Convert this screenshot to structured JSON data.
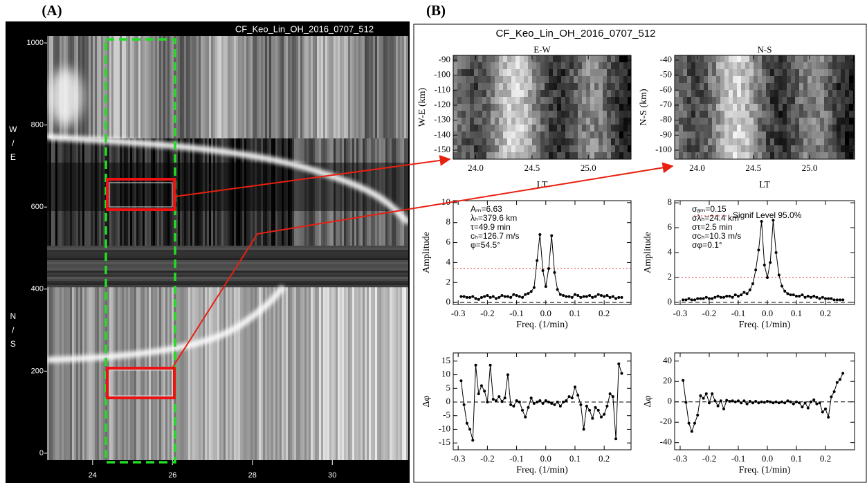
{
  "figure": {
    "panel_a": "(A)",
    "panel_b": "(B)",
    "title_b": "CF_Keo_Lin_OH_2016_0707_512"
  },
  "chart_data": [
    {
      "type": "keogram",
      "title": "CF_Keo_Lin_OH_2016_0707_512",
      "ylabel_top": "W/E",
      "ylabel_bottom": "N/S",
      "xlim": [
        22.86,
        31.9
      ],
      "xticks": [
        24,
        26,
        28,
        30
      ],
      "ylim": [
        -17,
        1017
      ],
      "yticks": [
        0,
        200,
        400,
        600,
        800,
        1000
      ]
    },
    {
      "type": "image",
      "title": "E-W",
      "xlabel": "LT",
      "ylabel": "W-E (km)",
      "xlim": [
        23.8,
        25.38
      ],
      "xticks": [
        {
          "value": 24,
          "label": "24.0"
        },
        24.5,
        {
          "value": 25,
          "label": "25.0"
        }
      ],
      "ylim": [
        -156,
        -86.8
      ],
      "yticks": [
        -90,
        -100,
        -110,
        -120,
        -130,
        -140,
        -150
      ]
    },
    {
      "type": "image",
      "title": "N-S",
      "xlabel": "LT",
      "ylabel": "N-S (km)",
      "xlim": [
        23.8,
        25.4
      ],
      "xticks": [
        {
          "value": 24,
          "label": "24.0"
        },
        24.5,
        {
          "value": 25,
          "label": "25.0"
        }
      ],
      "ylim": [
        -106,
        -36.8
      ],
      "yticks": [
        -40,
        -50,
        -60,
        -70,
        -80,
        -90,
        -100
      ]
    },
    {
      "type": "line",
      "xlabel": "Freq. (1/min)",
      "ylabel": "Amplitude",
      "color": "#000000",
      "sig_level": 3.4,
      "sig_color": "#e03030",
      "annotations": [
        "Aₘ=6.63",
        "λₕ=379.6 km",
        "τ=49.9 min",
        "cₕ=126.7 m/s",
        "φ=54.5°"
      ],
      "xlim": [
        -0.317,
        0.292
      ],
      "xticks": [
        -0.3,
        -0.2,
        -0.1,
        {
          "value": 0,
          "label": "0.0"
        },
        0.1,
        0.2
      ],
      "ylim": [
        -0.2,
        10.2
      ],
      "yticks": [
        0,
        2,
        4,
        6,
        8,
        10
      ],
      "x": [
        -0.29,
        -0.28,
        -0.27,
        -0.26,
        -0.25,
        -0.24,
        -0.23,
        -0.22,
        -0.21,
        -0.2,
        -0.19,
        -0.18,
        -0.17,
        -0.16,
        -0.15,
        -0.14,
        -0.13,
        -0.12,
        -0.11,
        -0.1,
        -0.09,
        -0.08,
        -0.07,
        -0.06,
        -0.05,
        -0.04,
        -0.03,
        -0.02,
        -0.01,
        0,
        0.01,
        0.02,
        0.03,
        0.04,
        0.05,
        0.06,
        0.07,
        0.08,
        0.09,
        0.1,
        0.11,
        0.12,
        0.13,
        0.14,
        0.15,
        0.16,
        0.17,
        0.18,
        0.19,
        0.2,
        0.21,
        0.22,
        0.23,
        0.24,
        0.25,
        0.26
      ],
      "values": [
        0.6,
        0.6,
        0.5,
        0.5,
        0.6,
        0.4,
        0.3,
        0.5,
        0.6,
        0.7,
        0.5,
        0.6,
        0.4,
        0.5,
        0.7,
        0.6,
        0.6,
        0.5,
        0.8,
        0.7,
        0.6,
        0.5,
        0.8,
        0.9,
        1.1,
        1.5,
        4.2,
        6.8,
        3.2,
        1.6,
        3.4,
        6.7,
        3.0,
        1.3,
        0.8,
        0.7,
        0.6,
        0.6,
        0.5,
        0.8,
        0.7,
        0.5,
        0.6,
        0.6,
        0.7,
        0.5,
        0.6,
        0.8,
        0.7,
        0.6,
        0.7,
        0.5,
        0.6,
        0.4,
        0.5,
        0.5
      ]
    },
    {
      "type": "line",
      "xlabel": "Freq. (1/min)",
      "ylabel": "Amplitude",
      "color": "#000000",
      "sig_level": 2,
      "sig_color": "#e03030",
      "legend": "Signif Level 95.0%",
      "annotations": [
        "σₐₘ=0.15",
        "σλₕ=24.4 km",
        "στ=2.5 min",
        "σcₕ=10.3 m/s",
        "σφ=0.1°"
      ],
      "xlim": [
        -0.319,
        0.3
      ],
      "xticks": [
        -0.3,
        -0.2,
        -0.1,
        {
          "value": 0,
          "label": "0.0"
        },
        0.1,
        0.2
      ],
      "ylim": [
        -0.17,
        8.17
      ],
      "yticks": [
        0,
        2,
        4,
        6,
        8
      ],
      "x": [
        -0.29,
        -0.28,
        -0.27,
        -0.26,
        -0.25,
        -0.24,
        -0.23,
        -0.22,
        -0.21,
        -0.2,
        -0.19,
        -0.18,
        -0.17,
        -0.16,
        -0.15,
        -0.14,
        -0.13,
        -0.12,
        -0.11,
        -0.1,
        -0.09,
        -0.08,
        -0.07,
        -0.06,
        -0.05,
        -0.04,
        -0.03,
        -0.02,
        -0.01,
        0,
        0.01,
        0.02,
        0.03,
        0.04,
        0.05,
        0.06,
        0.07,
        0.08,
        0.09,
        0.1,
        0.11,
        0.12,
        0.13,
        0.14,
        0.15,
        0.16,
        0.17,
        0.18,
        0.19,
        0.2,
        0.21,
        0.22,
        0.23,
        0.24,
        0.25,
        0.26
      ],
      "values": [
        0.2,
        0.2,
        0.3,
        0.2,
        0.2,
        0.3,
        0.3,
        0.3,
        0.4,
        0.3,
        0.3,
        0.4,
        0.5,
        0.4,
        0.4,
        0.5,
        0.5,
        0.4,
        0.6,
        0.5,
        0.6,
        0.8,
        0.7,
        1.0,
        1.5,
        2.6,
        4.2,
        6.5,
        3.0,
        2.0,
        3.2,
        6.6,
        4.0,
        2.2,
        1.3,
        0.9,
        0.7,
        0.6,
        0.6,
        0.5,
        0.5,
        0.6,
        0.4,
        0.5,
        0.4,
        0.5,
        0.4,
        0.3,
        0.4,
        0.3,
        0.3,
        0.3,
        0.2,
        0.2,
        0.2,
        0.2
      ]
    },
    {
      "type": "line",
      "xlabel": "Freq. (1/min)",
      "ylabel": "Δφ",
      "color": "#000000",
      "xlim": [
        -0.317,
        0.292
      ],
      "xticks": [
        -0.3,
        -0.2,
        -0.1,
        {
          "value": 0,
          "label": "0.0"
        },
        0.1,
        0.2
      ],
      "ylim": [
        -17.5,
        18
      ],
      "yticks": [
        -15,
        -10,
        -5,
        0,
        5,
        10,
        15
      ],
      "x": [
        -0.29,
        -0.28,
        -0.27,
        -0.26,
        -0.25,
        -0.24,
        -0.23,
        -0.22,
        -0.21,
        -0.2,
        -0.19,
        -0.18,
        -0.17,
        -0.16,
        -0.15,
        -0.14,
        -0.13,
        -0.12,
        -0.11,
        -0.1,
        -0.09,
        -0.08,
        -0.07,
        -0.06,
        -0.05,
        -0.04,
        -0.03,
        -0.02,
        -0.01,
        0,
        0.01,
        0.02,
        0.03,
        0.04,
        0.05,
        0.06,
        0.07,
        0.08,
        0.09,
        0.1,
        0.11,
        0.12,
        0.13,
        0.14,
        0.15,
        0.16,
        0.17,
        0.18,
        0.19,
        0.2,
        0.21,
        0.22,
        0.23,
        0.24,
        0.25,
        0.26
      ],
      "values": [
        7.8,
        -1,
        -7.8,
        -10,
        -14,
        13.5,
        3,
        6,
        4,
        0,
        13.5,
        1,
        0.5,
        2,
        0.2,
        1.5,
        10,
        -1,
        -1.5,
        0.5,
        0,
        -3,
        -5.5,
        -2,
        1.5,
        -0.5,
        0,
        0.5,
        -0.5,
        0.5,
        0,
        -0.5,
        -1,
        0,
        -1.5,
        0,
        0.5,
        2,
        1.5,
        5.5,
        2.5,
        -1,
        -10,
        -1.5,
        -3,
        -6,
        -2,
        -3,
        -5.5,
        -4.5,
        -1.5,
        3,
        2,
        -13.5,
        14,
        10.5
      ]
    },
    {
      "type": "line",
      "xlabel": "Freq. (1/min)",
      "ylabel": "Δφ",
      "color": "#000000",
      "xlim": [
        -0.319,
        0.3
      ],
      "xticks": [
        -0.3,
        -0.2,
        -0.1,
        {
          "value": 0,
          "label": "0.0"
        },
        0.1,
        0.2
      ],
      "ylim": [
        -47,
        48
      ],
      "yticks": [
        -40,
        -20,
        0,
        20,
        40
      ],
      "x": [
        -0.29,
        -0.28,
        -0.27,
        -0.26,
        -0.25,
        -0.24,
        -0.23,
        -0.22,
        -0.21,
        -0.2,
        -0.19,
        -0.18,
        -0.17,
        -0.16,
        -0.15,
        -0.14,
        -0.13,
        -0.12,
        -0.11,
        -0.1,
        -0.09,
        -0.08,
        -0.07,
        -0.06,
        -0.05,
        -0.04,
        -0.03,
        -0.02,
        -0.01,
        0,
        0.01,
        0.02,
        0.03,
        0.04,
        0.05,
        0.06,
        0.07,
        0.08,
        0.09,
        0.1,
        0.11,
        0.12,
        0.13,
        0.14,
        0.15,
        0.16,
        0.17,
        0.18,
        0.19,
        0.2,
        0.21,
        0.22,
        0.23,
        0.24,
        0.25,
        0.26
      ],
      "values": [
        21,
        -0.5,
        -21,
        -29,
        -21,
        -13,
        6,
        3.5,
        8,
        -1,
        8,
        1,
        -4,
        1,
        -7,
        1.5,
        0.5,
        1,
        0,
        1,
        -1,
        1,
        -2,
        0.5,
        -1,
        0.5,
        -1,
        0,
        -0.5,
        0.5,
        0,
        -1,
        0,
        -1,
        0,
        -1,
        1,
        0,
        -2,
        0,
        -1,
        -5,
        -1,
        -6,
        0,
        2,
        -2,
        -1,
        -10,
        -7,
        -15,
        5,
        10,
        19,
        22,
        28
      ]
    }
  ]
}
